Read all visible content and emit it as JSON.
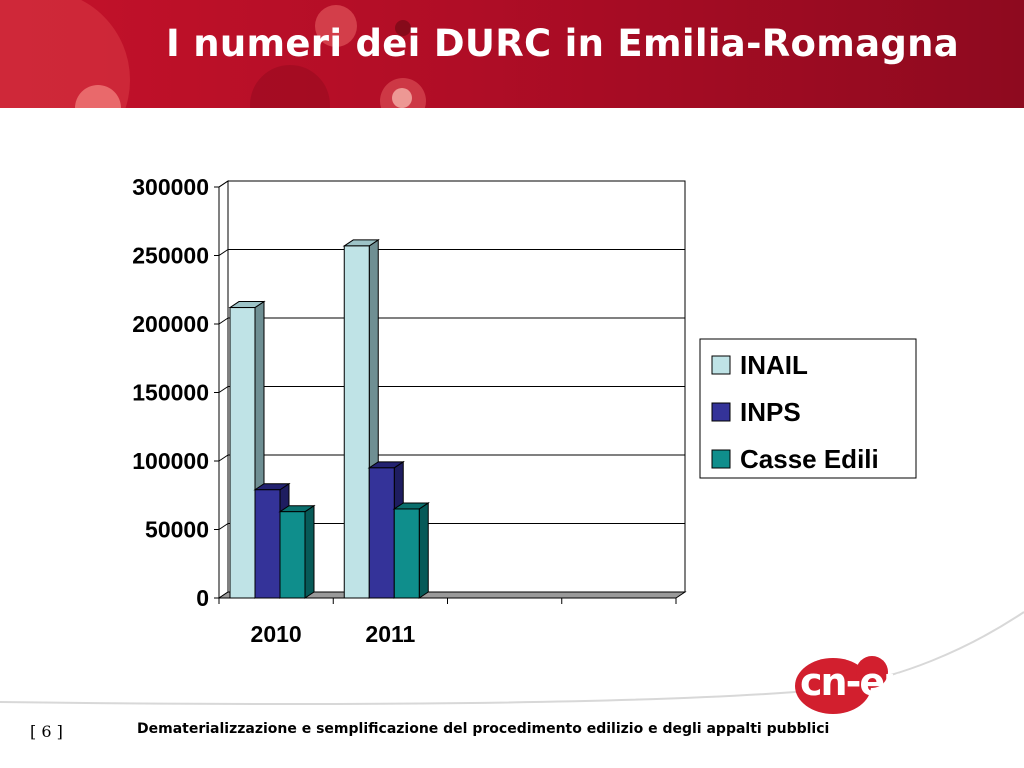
{
  "slide": {
    "title": "I numeri dei DURC in Emilia-Romagna",
    "page_number": "[ 6  ]",
    "footer": "Dematerializzazione e semplificazione del procedimento edilizio e degli appalti pubblici",
    "logo_text": "cn-er"
  },
  "colors": {
    "header_red": "#c4122a",
    "inail": "#bfe3e6",
    "inps": "#343399",
    "casse_edili": "#0f8e8c"
  },
  "chart_data": {
    "type": "bar",
    "categories": [
      "2010",
      "2011",
      "",
      ""
    ],
    "series": [
      {
        "name": "INAIL",
        "values": [
          212000,
          257000,
          null,
          null
        ]
      },
      {
        "name": "INPS",
        "values": [
          79000,
          95000,
          null,
          null
        ]
      },
      {
        "name": "Casse Edili",
        "values": [
          63000,
          65000,
          null,
          null
        ]
      }
    ],
    "y_ticks": [
      "0",
      "50000",
      "100000",
      "150000",
      "200000",
      "250000",
      "300000"
    ],
    "ylim": [
      0,
      300000
    ],
    "grid": true,
    "legend_position": "right",
    "three_d": true
  }
}
